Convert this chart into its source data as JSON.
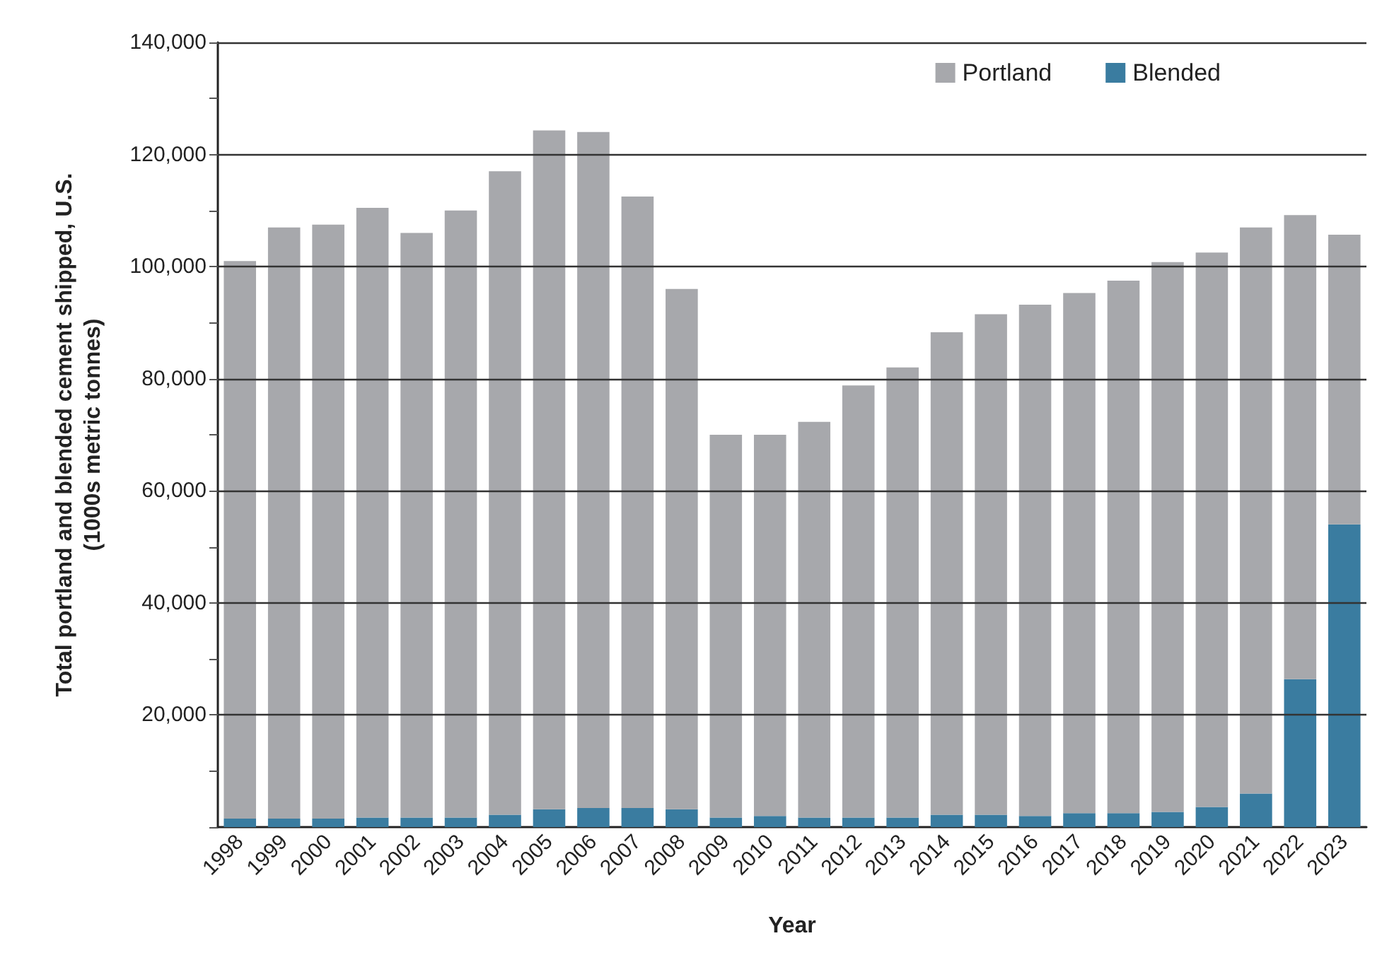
{
  "chart_data": {
    "type": "bar",
    "stacked": true,
    "xlabel": "Year",
    "ylabel": "Total portland and blended cement shipped, U.S.\n(1000s metric tonnes)",
    "categories": [
      "1998",
      "1999",
      "2000",
      "2001",
      "2002",
      "2003",
      "2004",
      "2005",
      "2006",
      "2007",
      "2008",
      "2009",
      "2010",
      "2011",
      "2012",
      "2013",
      "2014",
      "2015",
      "2016",
      "2017",
      "2018",
      "2019",
      "2020",
      "2021",
      "2022",
      "2023"
    ],
    "series": [
      {
        "name": "Blended",
        "color": "#3a7ca0",
        "values": [
          1500,
          1500,
          1500,
          1700,
          1700,
          1700,
          2200,
          3200,
          3400,
          3400,
          3200,
          1700,
          2000,
          1700,
          1700,
          1700,
          2200,
          2200,
          2000,
          2500,
          2500,
          2700,
          3600,
          6000,
          26400,
          54000
        ]
      },
      {
        "name": "Portland",
        "color": "#a7a8ac",
        "values": [
          99500,
          105500,
          106000,
          108800,
          104300,
          108300,
          114800,
          121100,
          120600,
          109100,
          92800,
          68300,
          68000,
          70600,
          77100,
          80300,
          86100,
          89300,
          91200,
          92800,
          95000,
          98100,
          98900,
          101000,
          82800,
          51700
        ]
      }
    ],
    "ylim": [
      0,
      140000
    ],
    "yticks": [
      {
        "value": 0,
        "label": null
      },
      {
        "value": 10000,
        "label": null
      },
      {
        "value": 20000,
        "label": "20,000"
      },
      {
        "value": 30000,
        "label": null
      },
      {
        "value": 40000,
        "label": "40,000"
      },
      {
        "value": 50000,
        "label": null
      },
      {
        "value": 60000,
        "label": "60,000"
      },
      {
        "value": 70000,
        "label": null
      },
      {
        "value": 80000,
        "label": "80,000"
      },
      {
        "value": 90000,
        "label": null
      },
      {
        "value": 100000,
        "label": "100,000"
      },
      {
        "value": 110000,
        "label": null
      },
      {
        "value": 120000,
        "label": "120,000"
      },
      {
        "value": 130000,
        "label": null
      },
      {
        "value": 140000,
        "label": "140,000"
      }
    ],
    "grid": "y",
    "legend": "top right"
  }
}
